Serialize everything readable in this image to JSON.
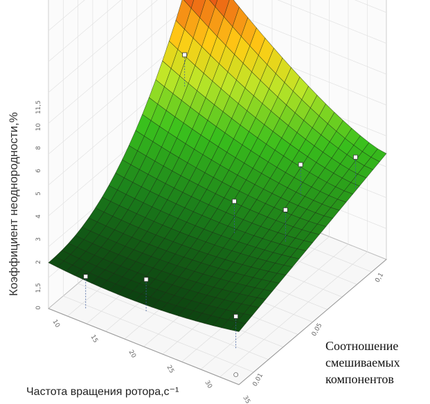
{
  "chart_data": {
    "type": "surface3d",
    "ylabel": "Коэффициент неоднородности,%",
    "xlabel": "Частота вращения ротора,с⁻¹",
    "zlabel_lines": [
      "Соотношение",
      "смешиваемых",
      "компонентов"
    ],
    "ytick_labels": [
      "0",
      "1,5",
      "2",
      "3",
      "4",
      "5",
      "6",
      "8",
      "10",
      "11,5"
    ],
    "xtick_labels": [
      "10",
      "15",
      "20",
      "25",
      "30",
      "35"
    ],
    "ztick_labels": [
      "0,01",
      "0,05",
      "0,1"
    ],
    "points_label": "Experimental points (white markers)",
    "grid": true
  }
}
